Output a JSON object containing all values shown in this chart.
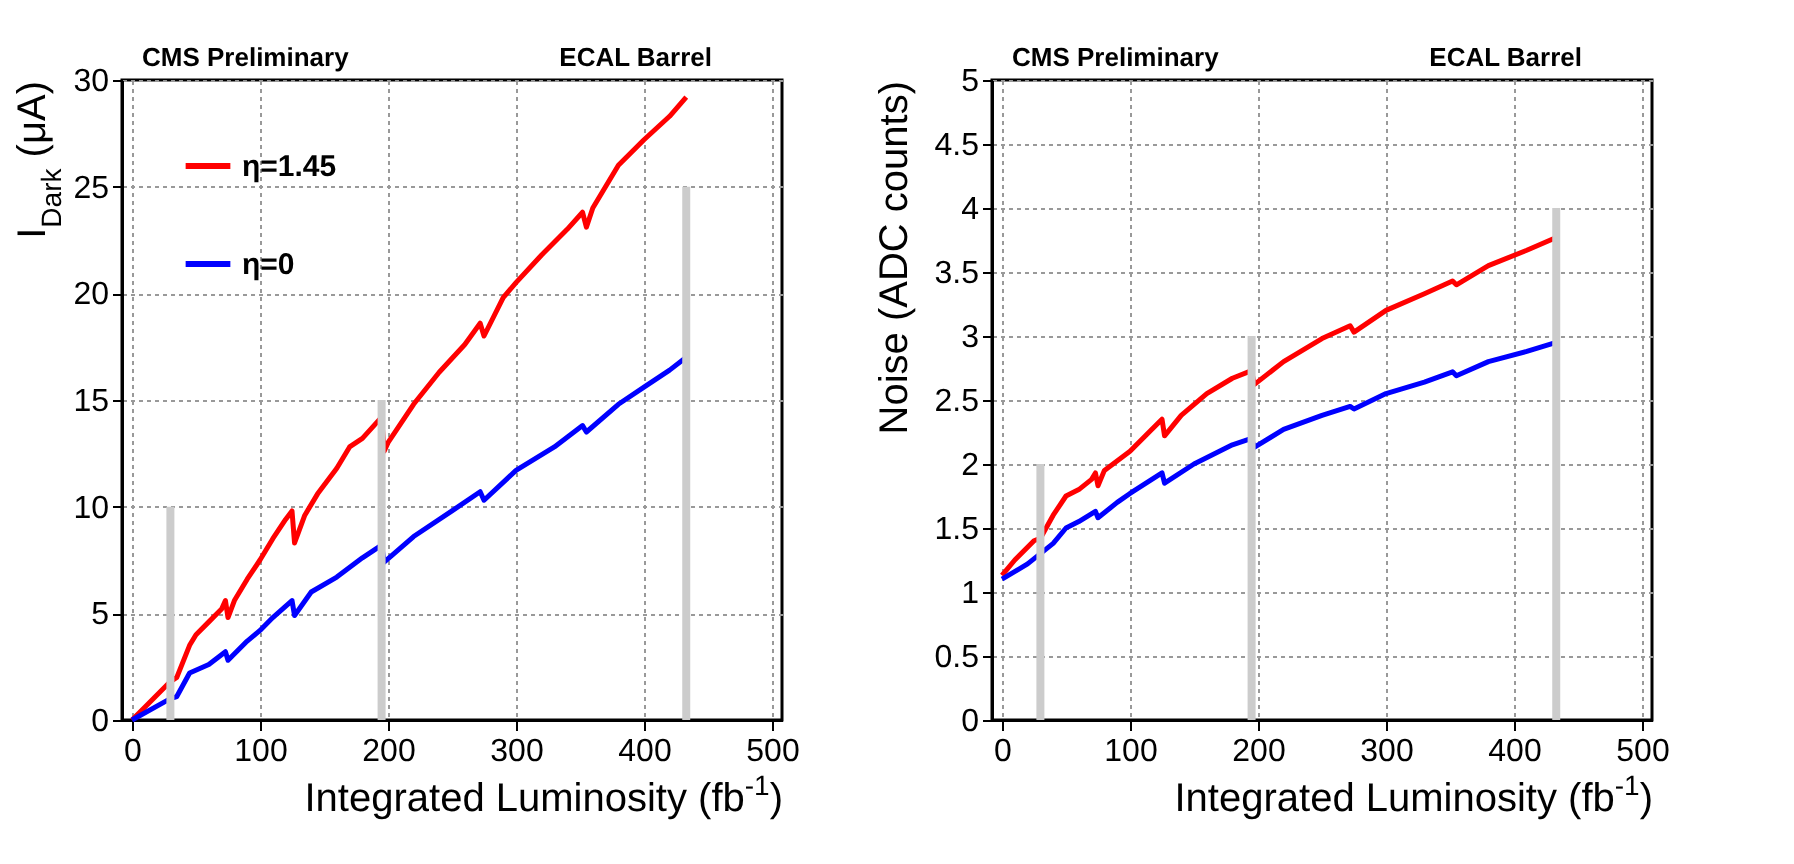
{
  "chart_data": [
    {
      "type": "line",
      "annotations": [
        "CMS Preliminary",
        "ECAL Barrel"
      ],
      "xlabel": "Integrated Luminosity (fb$^{-1}$)",
      "ylabel": "I$_{Dark}$ (μA)",
      "xlim": [
        0,
        500
      ],
      "xticks": [
        0,
        100,
        200,
        300,
        400,
        500
      ],
      "ylim": [
        0,
        30
      ],
      "yticks": [
        0,
        5,
        10,
        15,
        20,
        25,
        30
      ],
      "grid": true,
      "legend": "top left",
      "marker": "none",
      "line_style": "solid",
      "series": [
        {
          "name": "η=1.45",
          "color": "#ff0000",
          "x": [
            0,
            10,
            30,
            35,
            45,
            50,
            60,
            70,
            73,
            75,
            80,
            90,
            100,
            110,
            120,
            125,
            127,
            135,
            145,
            160,
            170,
            180,
            195,
            197,
            200,
            220,
            240,
            260,
            272,
            275,
            290,
            300,
            320,
            340,
            352,
            355,
            360,
            380,
            400,
            420,
            433
          ],
          "values": [
            0,
            0.6,
            1.8,
            2.0,
            3.5,
            4,
            4.6,
            5.2,
            5.6,
            4.8,
            5.6,
            6.6,
            7.5,
            8.5,
            9.4,
            9.8,
            8.3,
            9.6,
            10.6,
            11.8,
            12.8,
            13.2,
            14.2,
            12.6,
            13,
            14.8,
            16.3,
            17.6,
            18.6,
            18,
            19.8,
            20.5,
            21.8,
            23,
            23.8,
            23.1,
            24,
            26,
            27.2,
            28.3,
            29.2
          ]
        },
        {
          "name": "η=0",
          "color": "#0000ff",
          "x": [
            0,
            30,
            35,
            45,
            60,
            73,
            75,
            90,
            100,
            110,
            125,
            127,
            140,
            160,
            180,
            195,
            197,
            220,
            250,
            272,
            275,
            300,
            330,
            352,
            355,
            380,
            400,
            420,
            433
          ],
          "values": [
            0,
            1.0,
            1.1,
            2.2,
            2.6,
            3.2,
            2.8,
            3.7,
            4.2,
            4.8,
            5.6,
            4.9,
            6,
            6.7,
            7.6,
            8.2,
            7.4,
            8.6,
            9.8,
            10.7,
            10.3,
            11.7,
            12.8,
            13.8,
            13.5,
            14.8,
            15.6,
            16.4,
            17
          ]
        },
        {
          "type": "bar",
          "color": "#cccccc",
          "x": [
            30,
            195,
            433
          ],
          "values": [
            10,
            15,
            25
          ]
        }
      ]
    },
    {
      "type": "line",
      "annotations": [
        "CMS Preliminary",
        "ECAL Barrel"
      ],
      "xlabel": "Integrated Luminosity (fb$^{-1}$)",
      "ylabel": "Noise (ADC counts)",
      "xlim": [
        0,
        500
      ],
      "xticks": [
        0,
        100,
        200,
        300,
        400,
        500
      ],
      "ylim": [
        0,
        5
      ],
      "yticks": [
        0,
        0.5,
        1,
        1.5,
        2,
        2.5,
        3,
        3.5,
        4,
        4.5,
        5
      ],
      "grid": true,
      "legend": "top left",
      "marker": "none",
      "line_style": "solid",
      "series": [
        {
          "name": "η=1.45",
          "color": "#ff0000",
          "x": [
            0,
            10,
            25,
            30,
            40,
            50,
            60,
            70,
            73,
            75,
            80,
            100,
            115,
            125,
            127,
            140,
            160,
            180,
            195,
            197,
            220,
            250,
            272,
            275,
            300,
            330,
            352,
            355,
            380,
            410,
            433
          ],
          "values": [
            1.13,
            1.25,
            1.4,
            1.42,
            1.6,
            1.75,
            1.8,
            1.88,
            1.93,
            1.83,
            1.95,
            2.1,
            2.25,
            2.35,
            2.22,
            2.38,
            2.55,
            2.67,
            2.73,
            2.62,
            2.8,
            2.98,
            3.08,
            3.03,
            3.2,
            3.33,
            3.43,
            3.4,
            3.55,
            3.67,
            3.77
          ]
        },
        {
          "name": "η=0",
          "color": "#0000ff",
          "x": [
            0,
            20,
            30,
            40,
            50,
            60,
            73,
            75,
            90,
            100,
            125,
            127,
            150,
            180,
            195,
            197,
            220,
            250,
            272,
            275,
            300,
            330,
            352,
            355,
            380,
            410,
            433
          ],
          "values": [
            1.1,
            1.22,
            1.3,
            1.38,
            1.5,
            1.55,
            1.63,
            1.58,
            1.7,
            1.77,
            1.93,
            1.85,
            2.0,
            2.15,
            2.2,
            2.13,
            2.27,
            2.38,
            2.45,
            2.43,
            2.55,
            2.64,
            2.72,
            2.69,
            2.8,
            2.88,
            2.95
          ]
        },
        {
          "type": "bar",
          "color": "#cccccc",
          "x": [
            30,
            195,
            433
          ],
          "values": [
            2,
            3,
            4
          ]
        }
      ]
    }
  ]
}
